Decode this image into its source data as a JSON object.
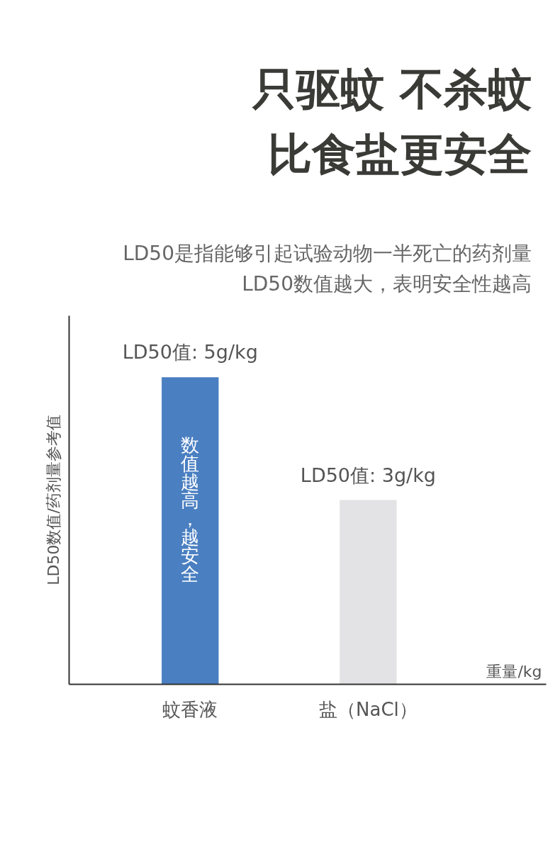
{
  "chart_data": {
    "type": "bar",
    "title": "只驱蚊 不杀蚊",
    "subtitle": "比食盐更安全",
    "categories": [
      "蚊香液",
      "盐（NaCl）"
    ],
    "colors": [
      "#4a7fc1",
      "#e3e3e5"
    ],
    "values": [
      5,
      3
    ],
    "value_labels": [
      "LD50值: 5g/kg",
      "LD50值: 3g/kg"
    ],
    "ylabel": "LD50数值/药剂量参考值",
    "xlabel": "重量/kg",
    "ylim": [
      0,
      6
    ],
    "tick_labels": "x",
    "grid": false,
    "annotations": [
      "LD50是指能够引起试验动物一半死亡的药剂量",
      "LD50数值越大，表明安全性越高",
      "数值越高，越安全"
    ]
  }
}
